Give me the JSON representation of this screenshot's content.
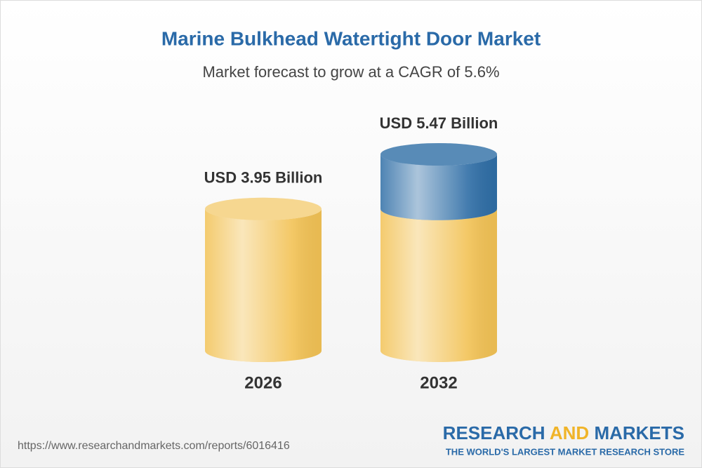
{
  "chart_data": {
    "type": "cylinder",
    "title": "Marine Bulkhead Watertight Door Market",
    "subtitle": "Market forecast to grow at a CAGR of 5.6%",
    "categories": [
      "2026",
      "2032"
    ],
    "values": [
      3.95,
      5.47
    ],
    "value_labels": [
      "USD 3.95 Billion",
      "USD 5.47 Billion"
    ],
    "color": "#f2c255",
    "growth_color": "#2f6ea6"
  },
  "footer": {
    "url": "https://www.researchandmarkets.com/reports/6016416",
    "brand": [
      "RESEARCH",
      "AND",
      "MARKETS"
    ],
    "tagline": "THE WORLD'S LARGEST MARKET RESEARCH STORE"
  }
}
